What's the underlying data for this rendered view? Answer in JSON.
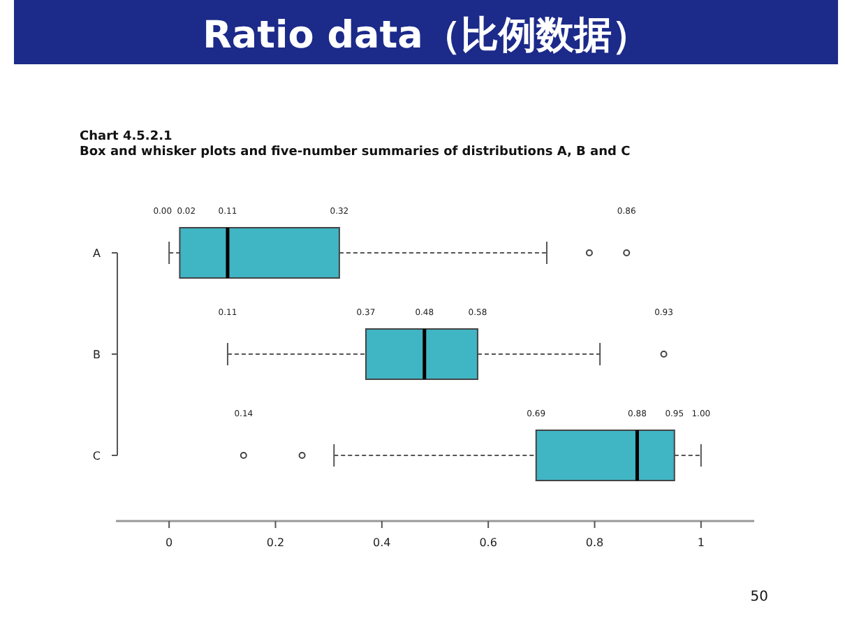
{
  "chart_data": {
    "type": "box",
    "orientation": "horizontal",
    "title": "Ratio data（比例数据）",
    "subtitle": "Chart 4.5.2.1",
    "categories": [
      "A",
      "B",
      "C"
    ],
    "series": [
      {
        "color": "#40b5c4",
        "boxes": [
          {
            "low": 0.0,
            "q1": 0.02,
            "median": 0.11,
            "q3": 0.32,
            "high": 0.71,
            "outliers": [
              0.79,
              0.86
            ]
          },
          {
            "low": 0.11,
            "q1": 0.37,
            "median": 0.48,
            "q3": 0.58,
            "high": 0.81,
            "outliers": [
              0.93
            ]
          },
          {
            "low": 0.31,
            "q1": 0.69,
            "median": 0.88,
            "q3": 0.95,
            "high": 1.0,
            "outliers": [
              0.14,
              0.25
            ]
          }
        ],
        "value_labels": [
          [
            "0.00",
            "0.02",
            "0.11",
            "0.32",
            "0.86"
          ],
          [
            "0.11",
            "0.37",
            "0.48",
            "0.58",
            "0.93"
          ],
          [
            "0.14",
            "0.69",
            "0.88",
            "0.95",
            "1.00"
          ]
        ]
      }
    ],
    "xlim": [
      -0.1,
      1.1
    ],
    "xticks": [
      0,
      0.2,
      0.4,
      0.6,
      0.8,
      1
    ],
    "annotations": [
      "Box and whisker plots and five-number summaries of distributions A, B and C",
      "50"
    ]
  }
}
